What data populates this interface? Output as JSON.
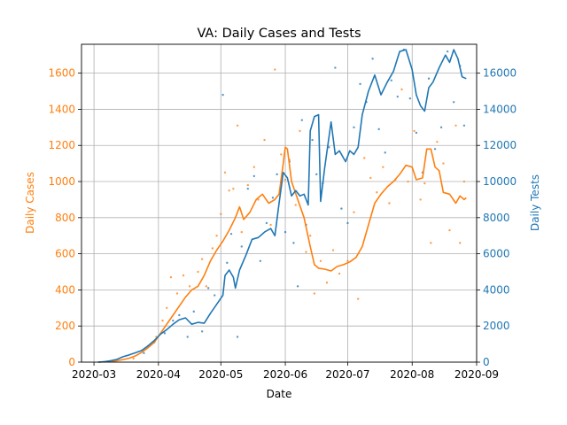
{
  "chart_data": {
    "type": "line",
    "title": "VA: Daily Cases and Tests",
    "xlabel": "Date",
    "ylabel_left": "Daily Cases",
    "ylabel_right": "Daily Tests",
    "x_ticks": [
      "2020-03",
      "2020-04",
      "2020-05",
      "2020-06",
      "2020-07",
      "2020-08",
      "2020-09"
    ],
    "y_left_ticks": [
      0,
      200,
      400,
      600,
      800,
      1000,
      1200,
      1400,
      1600
    ],
    "y_right_ticks": [
      0,
      2000,
      4000,
      6000,
      8000,
      10000,
      12000,
      14000,
      16000
    ],
    "xlim": [
      "2020-02-24",
      "2020-09-01"
    ],
    "ylim_left": [
      0,
      1760
    ],
    "ylim_right": [
      0,
      17600
    ],
    "grid": true,
    "colors": {
      "cases": "#ff7f0e",
      "tests": "#1f77b4",
      "grid": "#b0b0b0"
    },
    "series": [
      {
        "name": "Daily Cases",
        "axis": "left",
        "color": "#ff7f0e",
        "points": [
          [
            "2020-03-03",
            0
          ],
          [
            "2020-03-06",
            2
          ],
          [
            "2020-03-09",
            4
          ],
          [
            "2020-03-12",
            8
          ],
          [
            "2020-03-15",
            14
          ],
          [
            "2020-03-18",
            22
          ],
          [
            "2020-03-21",
            35
          ],
          [
            "2020-03-24",
            55
          ],
          [
            "2020-03-27",
            80
          ],
          [
            "2020-03-30",
            110
          ],
          [
            "2020-04-02",
            160
          ],
          [
            "2020-04-05",
            210
          ],
          [
            "2020-04-08",
            260
          ],
          [
            "2020-04-11",
            310
          ],
          [
            "2020-04-14",
            360
          ],
          [
            "2020-04-17",
            400
          ],
          [
            "2020-04-20",
            420
          ],
          [
            "2020-04-23",
            480
          ],
          [
            "2020-04-26",
            560
          ],
          [
            "2020-04-29",
            620
          ],
          [
            "2020-05-02",
            670
          ],
          [
            "2020-05-05",
            730
          ],
          [
            "2020-05-08",
            800
          ],
          [
            "2020-05-10",
            860
          ],
          [
            "2020-05-12",
            790
          ],
          [
            "2020-05-15",
            830
          ],
          [
            "2020-05-18",
            900
          ],
          [
            "2020-05-21",
            930
          ],
          [
            "2020-05-24",
            880
          ],
          [
            "2020-05-27",
            900
          ],
          [
            "2020-05-29",
            930
          ],
          [
            "2020-05-31",
            1100
          ],
          [
            "2020-06-01",
            1190
          ],
          [
            "2020-06-02",
            1180
          ],
          [
            "2020-06-04",
            1000
          ],
          [
            "2020-06-07",
            900
          ],
          [
            "2020-06-10",
            800
          ],
          [
            "2020-06-13",
            640
          ],
          [
            "2020-06-15",
            540
          ],
          [
            "2020-06-17",
            520
          ],
          [
            "2020-06-20",
            515
          ],
          [
            "2020-06-23",
            505
          ],
          [
            "2020-06-26",
            530
          ],
          [
            "2020-06-29",
            540
          ],
          [
            "2020-07-02",
            555
          ],
          [
            "2020-07-05",
            580
          ],
          [
            "2020-07-08",
            640
          ],
          [
            "2020-07-11",
            760
          ],
          [
            "2020-07-14",
            880
          ],
          [
            "2020-07-17",
            930
          ],
          [
            "2020-07-20",
            970
          ],
          [
            "2020-07-23",
            1000
          ],
          [
            "2020-07-26",
            1040
          ],
          [
            "2020-07-29",
            1090
          ],
          [
            "2020-08-01",
            1080
          ],
          [
            "2020-08-03",
            1010
          ],
          [
            "2020-08-06",
            1020
          ],
          [
            "2020-08-08",
            1180
          ],
          [
            "2020-08-10",
            1180
          ],
          [
            "2020-08-12",
            1080
          ],
          [
            "2020-08-14",
            1060
          ],
          [
            "2020-08-16",
            940
          ],
          [
            "2020-08-19",
            930
          ],
          [
            "2020-08-22",
            880
          ],
          [
            "2020-08-24",
            920
          ],
          [
            "2020-08-26",
            900
          ],
          [
            "2020-08-27",
            910
          ]
        ]
      },
      {
        "name": "Daily Tests",
        "axis": "right",
        "color": "#1f77b4",
        "points": [
          [
            "2020-03-03",
            0
          ],
          [
            "2020-03-06",
            20
          ],
          [
            "2020-03-09",
            80
          ],
          [
            "2020-03-12",
            150
          ],
          [
            "2020-03-15",
            300
          ],
          [
            "2020-03-18",
            400
          ],
          [
            "2020-03-21",
            520
          ],
          [
            "2020-03-24",
            650
          ],
          [
            "2020-03-27",
            900
          ],
          [
            "2020-03-30",
            1200
          ],
          [
            "2020-04-02",
            1550
          ],
          [
            "2020-04-05",
            1800
          ],
          [
            "2020-04-08",
            2100
          ],
          [
            "2020-04-11",
            2350
          ],
          [
            "2020-04-14",
            2450
          ],
          [
            "2020-04-17",
            2100
          ],
          [
            "2020-04-20",
            2200
          ],
          [
            "2020-04-23",
            2150
          ],
          [
            "2020-04-26",
            2700
          ],
          [
            "2020-04-29",
            3200
          ],
          [
            "2020-05-02",
            3700
          ],
          [
            "2020-05-03",
            4800
          ],
          [
            "2020-05-05",
            5100
          ],
          [
            "2020-05-07",
            4700
          ],
          [
            "2020-05-08",
            4100
          ],
          [
            "2020-05-10",
            5100
          ],
          [
            "2020-05-13",
            5900
          ],
          [
            "2020-05-16",
            6800
          ],
          [
            "2020-05-19",
            6900
          ],
          [
            "2020-05-22",
            7200
          ],
          [
            "2020-05-25",
            7400
          ],
          [
            "2020-05-27",
            7000
          ],
          [
            "2020-05-29",
            8800
          ],
          [
            "2020-05-31",
            10500
          ],
          [
            "2020-06-02",
            10200
          ],
          [
            "2020-06-04",
            9200
          ],
          [
            "2020-06-06",
            9500
          ],
          [
            "2020-06-08",
            9200
          ],
          [
            "2020-06-10",
            9300
          ],
          [
            "2020-06-12",
            8700
          ],
          [
            "2020-06-13",
            12800
          ],
          [
            "2020-06-15",
            13600
          ],
          [
            "2020-06-17",
            13700
          ],
          [
            "2020-06-18",
            8900
          ],
          [
            "2020-06-20",
            10800
          ],
          [
            "2020-06-23",
            13300
          ],
          [
            "2020-06-25",
            11500
          ],
          [
            "2020-06-27",
            11700
          ],
          [
            "2020-06-30",
            11100
          ],
          [
            "2020-07-02",
            11700
          ],
          [
            "2020-07-04",
            11500
          ],
          [
            "2020-07-06",
            11900
          ],
          [
            "2020-07-08",
            13700
          ],
          [
            "2020-07-11",
            15000
          ],
          [
            "2020-07-14",
            15900
          ],
          [
            "2020-07-17",
            14800
          ],
          [
            "2020-07-20",
            15500
          ],
          [
            "2020-07-23",
            16100
          ],
          [
            "2020-07-26",
            17200
          ],
          [
            "2020-07-29",
            17300
          ],
          [
            "2020-08-01",
            16200
          ],
          [
            "2020-08-03",
            14800
          ],
          [
            "2020-08-05",
            14200
          ],
          [
            "2020-08-07",
            13900
          ],
          [
            "2020-08-09",
            15200
          ],
          [
            "2020-08-11",
            15500
          ],
          [
            "2020-08-14",
            16300
          ],
          [
            "2020-08-17",
            17000
          ],
          [
            "2020-08-19",
            16600
          ],
          [
            "2020-08-21",
            17300
          ],
          [
            "2020-08-23",
            16800
          ],
          [
            "2020-08-25",
            15800
          ],
          [
            "2020-08-27",
            15700
          ]
        ]
      }
    ],
    "scatter_cases": [
      [
        "2020-03-20",
        20
      ],
      [
        "2020-03-27",
        90
      ],
      [
        "2020-03-31",
        140
      ],
      [
        "2020-04-03",
        230
      ],
      [
        "2020-04-05",
        300
      ],
      [
        "2020-04-07",
        470
      ],
      [
        "2020-04-10",
        380
      ],
      [
        "2020-04-13",
        480
      ],
      [
        "2020-04-16",
        420
      ],
      [
        "2020-04-20",
        500
      ],
      [
        "2020-04-22",
        570
      ],
      [
        "2020-04-24",
        420
      ],
      [
        "2020-04-27",
        630
      ],
      [
        "2020-04-29",
        700
      ],
      [
        "2020-05-01",
        820
      ],
      [
        "2020-05-03",
        1050
      ],
      [
        "2020-05-05",
        950
      ],
      [
        "2020-05-07",
        960
      ],
      [
        "2020-05-09",
        1310
      ],
      [
        "2020-05-11",
        720
      ],
      [
        "2020-05-14",
        980
      ],
      [
        "2020-05-17",
        1080
      ],
      [
        "2020-05-19",
        900
      ],
      [
        "2020-05-22",
        1230
      ],
      [
        "2020-05-25",
        760
      ],
      [
        "2020-05-27",
        1620
      ],
      [
        "2020-05-30",
        1150
      ],
      [
        "2020-06-01",
        1010
      ],
      [
        "2020-06-03",
        1120
      ],
      [
        "2020-06-06",
        870
      ],
      [
        "2020-06-08",
        1280
      ],
      [
        "2020-06-11",
        610
      ],
      [
        "2020-06-13",
        700
      ],
      [
        "2020-06-15",
        380
      ],
      [
        "2020-06-18",
        560
      ],
      [
        "2020-06-21",
        440
      ],
      [
        "2020-06-24",
        620
      ],
      [
        "2020-06-27",
        490
      ],
      [
        "2020-07-01",
        560
      ],
      [
        "2020-07-04",
        830
      ],
      [
        "2020-07-06",
        350
      ],
      [
        "2020-07-09",
        1130
      ],
      [
        "2020-07-12",
        1020
      ],
      [
        "2020-07-15",
        940
      ],
      [
        "2020-07-18",
        1080
      ],
      [
        "2020-07-21",
        880
      ],
      [
        "2020-07-24",
        1010
      ],
      [
        "2020-07-27",
        1510
      ],
      [
        "2020-07-30",
        1000
      ],
      [
        "2020-08-02",
        1280
      ],
      [
        "2020-08-05",
        900
      ],
      [
        "2020-08-07",
        990
      ],
      [
        "2020-08-10",
        660
      ],
      [
        "2020-08-13",
        1220
      ],
      [
        "2020-08-16",
        1100
      ],
      [
        "2020-08-19",
        730
      ],
      [
        "2020-08-22",
        1310
      ],
      [
        "2020-08-24",
        660
      ],
      [
        "2020-08-26",
        1000
      ]
    ],
    "scatter_tests": [
      [
        "2020-03-25",
        500
      ],
      [
        "2020-03-30",
        1100
      ],
      [
        "2020-04-04",
        1600
      ],
      [
        "2020-04-08",
        2300
      ],
      [
        "2020-04-11",
        2600
      ],
      [
        "2020-04-15",
        1400
      ],
      [
        "2020-04-18",
        2800
      ],
      [
        "2020-04-22",
        1700
      ],
      [
        "2020-04-25",
        4100
      ],
      [
        "2020-04-28",
        3700
      ],
      [
        "2020-05-02",
        14800
      ],
      [
        "2020-05-04",
        5500
      ],
      [
        "2020-05-06",
        7100
      ],
      [
        "2020-05-09",
        1400
      ],
      [
        "2020-05-11",
        6400
      ],
      [
        "2020-05-14",
        9600
      ],
      [
        "2020-05-17",
        10300
      ],
      [
        "2020-05-20",
        5600
      ],
      [
        "2020-05-23",
        7700
      ],
      [
        "2020-05-26",
        9100
      ],
      [
        "2020-05-28",
        10400
      ],
      [
        "2020-06-01",
        7200
      ],
      [
        "2020-06-03",
        11100
      ],
      [
        "2020-06-05",
        6600
      ],
      [
        "2020-06-07",
        4200
      ],
      [
        "2020-06-09",
        13400
      ],
      [
        "2020-06-11",
        7600
      ],
      [
        "2020-06-14",
        12300
      ],
      [
        "2020-06-16",
        10400
      ],
      [
        "2020-06-19",
        9900
      ],
      [
        "2020-06-22",
        11900
      ],
      [
        "2020-06-25",
        16300
      ],
      [
        "2020-06-28",
        8500
      ],
      [
        "2020-07-01",
        7700
      ],
      [
        "2020-07-04",
        13000
      ],
      [
        "2020-07-07",
        15400
      ],
      [
        "2020-07-10",
        14400
      ],
      [
        "2020-07-13",
        16800
      ],
      [
        "2020-07-16",
        12900
      ],
      [
        "2020-07-19",
        11600
      ],
      [
        "2020-07-22",
        15600
      ],
      [
        "2020-07-25",
        14700
      ],
      [
        "2020-07-28",
        17300
      ],
      [
        "2020-07-31",
        14600
      ],
      [
        "2020-08-03",
        12700
      ],
      [
        "2020-08-06",
        10500
      ],
      [
        "2020-08-09",
        15700
      ],
      [
        "2020-08-12",
        11800
      ],
      [
        "2020-08-15",
        13000
      ],
      [
        "2020-08-18",
        17200
      ],
      [
        "2020-08-21",
        14400
      ],
      [
        "2020-08-24",
        16400
      ],
      [
        "2020-08-26",
        13100
      ]
    ]
  }
}
